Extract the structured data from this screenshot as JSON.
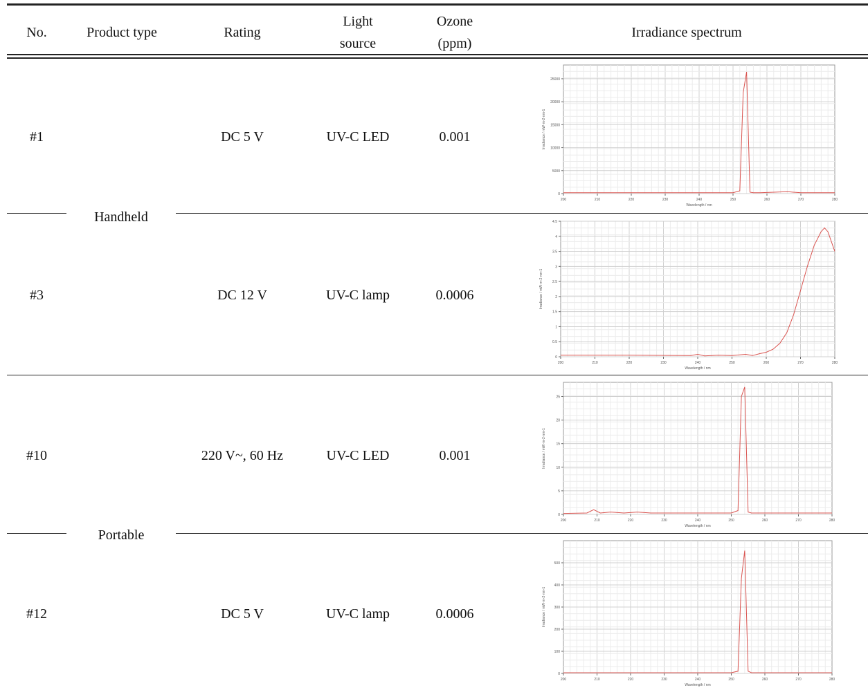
{
  "headers": {
    "no": "No.",
    "product_type": "Product type",
    "rating": "Rating",
    "light_source_line1": "Light",
    "light_source_line2": "source",
    "ozone_line1": "Ozone",
    "ozone_line2": "(ppm)",
    "spectrum": "Irradiance spectrum"
  },
  "groups": [
    {
      "label": "Handheld"
    },
    {
      "label": "Portable"
    }
  ],
  "rows": [
    {
      "no": "#1",
      "rating": "DC 5 V",
      "light": "UV-C LED",
      "ozone": "0.001"
    },
    {
      "no": "#3",
      "rating": "DC 12 V",
      "light": "UV-C lamp",
      "ozone": "0.0006"
    },
    {
      "no": "#10",
      "rating": "220 V~, 60 Hz",
      "light": "UV-C LED",
      "ozone": "0.001"
    },
    {
      "no": "#12",
      "rating": "DC 5 V",
      "light": "UV-C lamp",
      "ozone": "0.0006"
    }
  ],
  "chart_data": [
    {
      "type": "line",
      "xlabel": "Wavelength / nm",
      "ylabel": "Irradiance / mW·m-2·nm-1",
      "xlim": [
        200,
        280
      ],
      "ylim": [
        0,
        28000
      ],
      "xticks": [
        200,
        210,
        220,
        230,
        240,
        250,
        260,
        270,
        280
      ],
      "yticks": [
        0,
        5000,
        10000,
        15000,
        20000,
        25000
      ],
      "ytick_labels": [
        "0",
        "5000",
        "10000",
        "15000",
        "20000",
        "25000"
      ],
      "color": "#d9534f",
      "x": [
        200,
        225,
        250,
        252,
        253,
        254,
        255,
        256,
        258,
        262,
        266,
        270,
        280
      ],
      "y": [
        200,
        200,
        200,
        600,
        22000,
        26500,
        300,
        200,
        200,
        300,
        400,
        200,
        200
      ]
    },
    {
      "type": "line",
      "xlabel": "Wavelength / nm",
      "ylabel": "Irradiance / mW·m-2·nm-1",
      "xlim": [
        200,
        280
      ],
      "ylim": [
        0,
        4.5
      ],
      "xticks": [
        200,
        210,
        220,
        230,
        240,
        250,
        260,
        270,
        280
      ],
      "yticks": [
        0,
        0.5,
        1,
        1.5,
        2,
        2.5,
        3,
        3.5,
        4,
        4.5
      ],
      "ytick_labels": [
        "0",
        "0.5",
        "1",
        "1.5",
        "2",
        "2.5",
        "3",
        "3.5",
        "4",
        "4.5"
      ],
      "color": "#d9534f",
      "x": [
        200,
        220,
        238,
        240,
        242,
        246,
        250,
        254,
        256,
        258,
        260,
        262,
        264,
        266,
        268,
        270,
        272,
        274,
        276,
        277,
        278,
        280
      ],
      "y": [
        0.05,
        0.05,
        0.04,
        0.08,
        0.03,
        0.05,
        0.04,
        0.08,
        0.04,
        0.1,
        0.15,
        0.25,
        0.45,
        0.8,
        1.4,
        2.2,
        3.0,
        3.7,
        4.15,
        4.28,
        4.15,
        3.5
      ]
    },
    {
      "type": "line",
      "xlabel": "Wavelength / nm",
      "ylabel": "Irradiance / mW·m-2·nm-1",
      "xlim": [
        200,
        280
      ],
      "ylim": [
        0,
        28
      ],
      "xticks": [
        200,
        210,
        220,
        230,
        240,
        250,
        260,
        270,
        280
      ],
      "yticks": [
        0,
        5,
        10,
        15,
        20,
        25
      ],
      "ytick_labels": [
        "0",
        "5",
        "10",
        "15",
        "20",
        "25"
      ],
      "color": "#d9534f",
      "x": [
        200,
        207,
        209,
        211,
        214,
        218,
        222,
        226,
        230,
        250,
        252,
        253,
        254,
        255,
        256,
        260,
        280
      ],
      "y": [
        0.2,
        0.3,
        1.0,
        0.3,
        0.5,
        0.3,
        0.5,
        0.3,
        0.3,
        0.3,
        0.8,
        25,
        27,
        0.5,
        0.3,
        0.3,
        0.3
      ]
    },
    {
      "type": "line",
      "xlabel": "Wavelength / nm",
      "ylabel": "Irradiance / mW·m-2·nm-1",
      "xlim": [
        200,
        280
      ],
      "ylim": [
        0,
        600
      ],
      "xticks": [
        200,
        210,
        220,
        230,
        240,
        250,
        260,
        270,
        280
      ],
      "yticks": [
        0,
        100,
        200,
        300,
        400,
        500
      ],
      "ytick_labels": [
        "0",
        "100",
        "200",
        "300",
        "400",
        "500"
      ],
      "color": "#d9534f",
      "x": [
        200,
        225,
        250,
        252,
        253,
        254,
        255,
        256,
        260,
        270,
        280
      ],
      "y": [
        3,
        3,
        3,
        10,
        430,
        555,
        10,
        3,
        3,
        3,
        3
      ]
    }
  ]
}
